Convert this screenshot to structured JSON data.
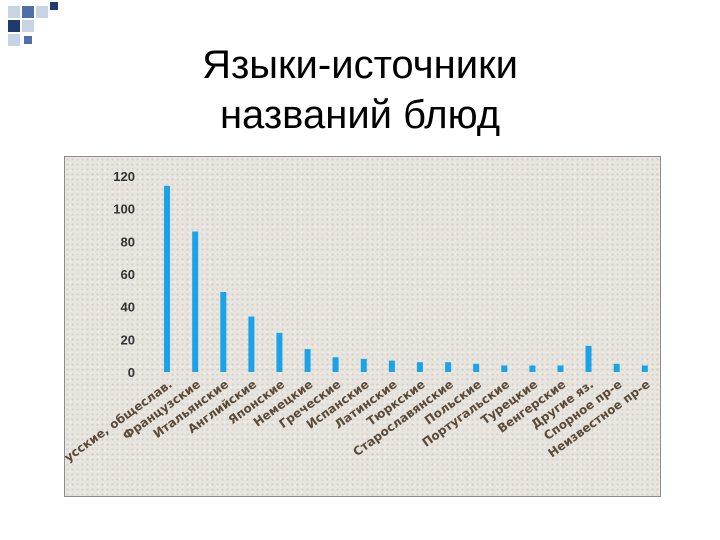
{
  "slide": {
    "title_line1": "Языки-источники",
    "title_line2": "названий блюд"
  },
  "colors": {
    "bar": "#1aa3e8",
    "deco_dark": "#1f3b6e",
    "deco_mid": "#4f6fa8",
    "deco_light": "#c9d3e6"
  },
  "chart_data": {
    "type": "bar",
    "title": "",
    "xlabel": "",
    "ylabel": "",
    "ylim": [
      0,
      120
    ],
    "yticks": [
      0,
      20,
      40,
      60,
      80,
      100,
      120
    ],
    "grid": false,
    "categories": [
      "Русские, общеслав.",
      "Французские",
      "Итальянские",
      "Английские",
      "Японские",
      "Немецкие",
      "Греческие",
      "Испанские",
      "Латинские",
      "Тюркские",
      "Старославянские",
      "Польские",
      "Португальские",
      "Турецкие",
      "Венгерские",
      "Другие яз.",
      "Спорное пр-е",
      "Неизвестное пр-е"
    ],
    "values": [
      114,
      86,
      49,
      34,
      24,
      14,
      9,
      8,
      7,
      6,
      6,
      5,
      4,
      4,
      4,
      16,
      5,
      4
    ]
  }
}
